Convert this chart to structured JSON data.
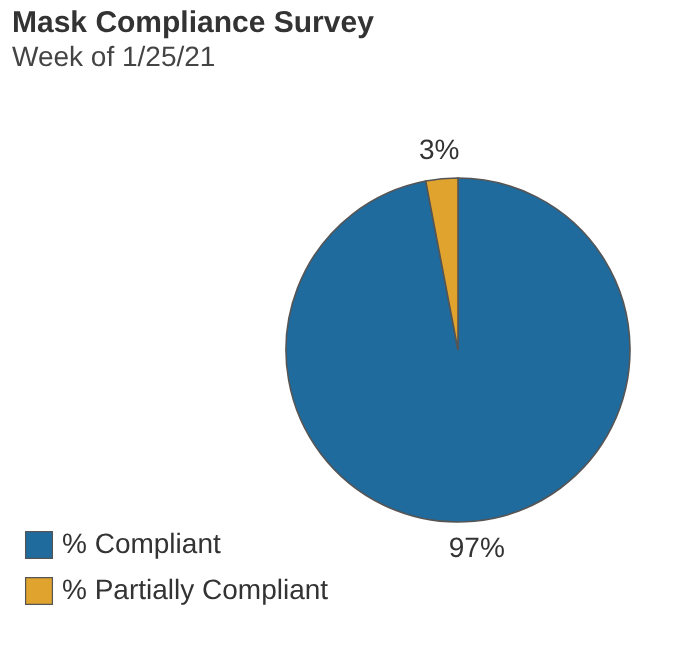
{
  "chart_data": {
    "type": "pie",
    "title": "Mask Compliance Survey",
    "subtitle": "Week of 1/25/21",
    "categories": [
      "% Compliant",
      "% Partially Compliant"
    ],
    "values": [
      97,
      3
    ],
    "colors": [
      "#1f6b9e",
      "#e0a42e"
    ],
    "value_labels": [
      "97%",
      "3%"
    ],
    "legend": "bottom left"
  }
}
